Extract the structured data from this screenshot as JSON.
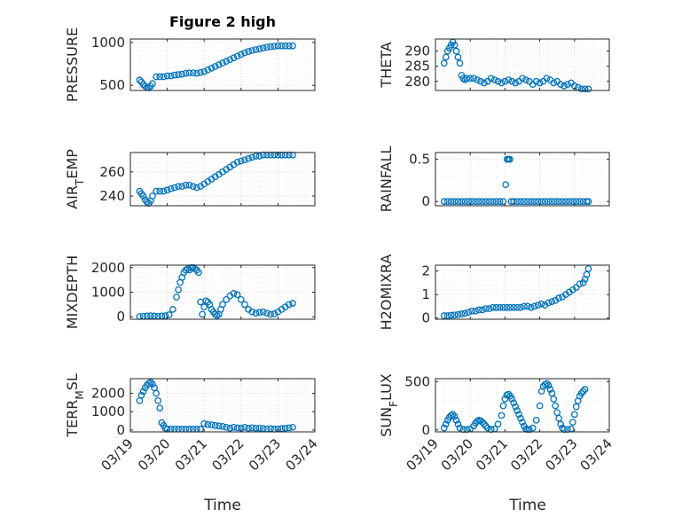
{
  "figure": {
    "title": "Figure 2 high",
    "xlabel": "Time",
    "x_ticklabels": [
      "03/19",
      "03/20",
      "03/21",
      "03/22",
      "03/23",
      "03/24"
    ]
  },
  "chart_data": [
    {
      "type": "scatter",
      "id": "pressure",
      "ylabel": "PRESSURE",
      "ylabel_sub": "",
      "xlim": [
        0,
        5
      ],
      "ylim": [
        440,
        1040
      ],
      "yticks": [
        500,
        1000
      ],
      "ytick_labels": [
        "500",
        "1000"
      ],
      "grid": true,
      "marker": "circle-open",
      "color": "#0072BD",
      "x": [
        0.25,
        0.3,
        0.35,
        0.4,
        0.45,
        0.5,
        0.55,
        0.6,
        0.7,
        0.8,
        0.9,
        1.0,
        1.1,
        1.2,
        1.3,
        1.4,
        1.5,
        1.6,
        1.7,
        1.8,
        1.9,
        2.0,
        2.1,
        2.2,
        2.3,
        2.4,
        2.5,
        2.6,
        2.7,
        2.8,
        2.9,
        3.0,
        3.1,
        3.2,
        3.3,
        3.4,
        3.5,
        3.6,
        3.7,
        3.8,
        3.9,
        4.0,
        4.1,
        4.2,
        4.3,
        4.4
      ],
      "y": [
        560,
        540,
        510,
        490,
        475,
        470,
        490,
        520,
        600,
        600,
        600,
        610,
        610,
        620,
        625,
        630,
        640,
        645,
        645,
        640,
        650,
        660,
        680,
        700,
        720,
        740,
        760,
        780,
        800,
        820,
        840,
        860,
        880,
        895,
        905,
        915,
        925,
        935,
        945,
        950,
        955,
        960,
        960,
        960,
        960,
        960
      ]
    },
    {
      "type": "scatter",
      "id": "theta",
      "ylabel": "THETA",
      "ylabel_sub": "",
      "xlim": [
        0,
        5
      ],
      "ylim": [
        277,
        294
      ],
      "yticks": [
        280,
        285,
        290
      ],
      "ytick_labels": [
        "280",
        "285",
        "290"
      ],
      "grid": true,
      "marker": "circle-open",
      "color": "#0072BD",
      "x": [
        0.25,
        0.3,
        0.35,
        0.4,
        0.45,
        0.5,
        0.55,
        0.6,
        0.65,
        0.7,
        0.75,
        0.8,
        0.85,
        0.9,
        1.0,
        1.1,
        1.2,
        1.3,
        1.4,
        1.5,
        1.6,
        1.7,
        1.8,
        1.9,
        2.0,
        2.1,
        2.2,
        2.3,
        2.4,
        2.5,
        2.6,
        2.7,
        2.8,
        2.9,
        3.0,
        3.1,
        3.2,
        3.3,
        3.4,
        3.5,
        3.6,
        3.7,
        3.8,
        3.9,
        4.0,
        4.1,
        4.2,
        4.3,
        4.4
      ],
      "y": [
        286,
        288,
        290,
        291,
        292,
        293,
        292,
        290,
        288,
        286,
        282,
        281,
        280.5,
        281,
        281,
        281,
        280.5,
        280,
        279.5,
        280,
        281,
        280.5,
        280,
        279.5,
        280,
        280.5,
        280,
        279.5,
        280,
        281,
        280.5,
        280,
        279,
        280,
        279.5,
        280,
        281,
        280.5,
        279.5,
        280,
        279,
        278.5,
        279,
        279.5,
        278.5,
        278,
        277.5,
        277.5,
        277.5
      ]
    },
    {
      "type": "scatter",
      "id": "air_temp",
      "ylabel": "AIR",
      "ylabel_sub": "T",
      "ylabel_rest": "EMP",
      "xlim": [
        0,
        5
      ],
      "ylim": [
        232,
        276
      ],
      "yticks": [
        240,
        260
      ],
      "ytick_labels": [
        "240",
        "260"
      ],
      "grid": true,
      "marker": "circle-open",
      "color": "#0072BD",
      "x": [
        0.25,
        0.3,
        0.35,
        0.4,
        0.45,
        0.5,
        0.55,
        0.6,
        0.7,
        0.8,
        0.9,
        1.0,
        1.1,
        1.2,
        1.3,
        1.4,
        1.5,
        1.6,
        1.7,
        1.8,
        1.9,
        2.0,
        2.1,
        2.2,
        2.3,
        2.4,
        2.5,
        2.6,
        2.7,
        2.8,
        2.9,
        3.0,
        3.1,
        3.2,
        3.3,
        3.4,
        3.5,
        3.6,
        3.7,
        3.8,
        3.9,
        4.0,
        4.1,
        4.2,
        4.3,
        4.4
      ],
      "y": [
        244,
        242,
        240,
        237,
        235,
        234,
        236,
        240,
        244,
        244,
        244,
        245,
        246,
        247,
        248,
        248,
        249,
        249,
        248,
        247,
        248,
        250,
        252,
        254,
        256,
        258,
        260,
        262,
        264,
        266,
        268,
        269,
        270,
        271,
        272,
        273,
        273,
        274,
        274,
        274,
        274,
        274,
        274,
        274,
        274,
        274
      ]
    },
    {
      "type": "scatter",
      "id": "rainfall",
      "ylabel": "RAINFALL",
      "ylabel_sub": "",
      "xlim": [
        0,
        5
      ],
      "ylim": [
        -0.05,
        0.58
      ],
      "yticks": [
        0,
        0.5
      ],
      "ytick_labels": [
        "0",
        "0.5"
      ],
      "grid": true,
      "marker": "circle-open",
      "color": "#0072BD",
      "x": [
        0.25,
        0.35,
        0.45,
        0.55,
        0.65,
        0.75,
        0.85,
        0.95,
        1.05,
        1.15,
        1.25,
        1.35,
        1.45,
        1.55,
        1.65,
        1.75,
        1.85,
        1.95,
        2.02,
        2.06,
        2.1,
        2.14,
        2.18,
        2.25,
        2.35,
        2.45,
        2.55,
        2.65,
        2.75,
        2.85,
        2.95,
        3.05,
        3.15,
        3.25,
        3.35,
        3.45,
        3.55,
        3.65,
        3.75,
        3.85,
        3.95,
        4.05,
        4.15,
        4.25,
        4.35,
        4.4
      ],
      "y": [
        0,
        0,
        0,
        0,
        0,
        0,
        0,
        0,
        0,
        0,
        0,
        0,
        0,
        0,
        0,
        0,
        0,
        0,
        0.2,
        0.5,
        0.5,
        0.5,
        0,
        0,
        0,
        0,
        0,
        0,
        0,
        0,
        0,
        0,
        0,
        0,
        0,
        0,
        0,
        0,
        0,
        0,
        0,
        0,
        0,
        0,
        0,
        0
      ]
    },
    {
      "type": "scatter",
      "id": "mixdepth",
      "ylabel": "MIXDEPTH",
      "ylabel_sub": "",
      "xlim": [
        0,
        5
      ],
      "ylim": [
        -100,
        2100
      ],
      "yticks": [
        0,
        1000,
        2000
      ],
      "ytick_labels": [
        "0",
        "1000",
        "2000"
      ],
      "grid": true,
      "marker": "circle-open",
      "color": "#0072BD",
      "x": [
        0.25,
        0.35,
        0.45,
        0.55,
        0.65,
        0.75,
        0.85,
        0.95,
        1.05,
        1.15,
        1.25,
        1.3,
        1.35,
        1.4,
        1.45,
        1.5,
        1.55,
        1.6,
        1.65,
        1.7,
        1.75,
        1.8,
        1.85,
        1.9,
        1.95,
        2.0,
        2.05,
        2.1,
        2.15,
        2.2,
        2.25,
        2.3,
        2.35,
        2.4,
        2.45,
        2.5,
        2.6,
        2.7,
        2.8,
        2.9,
        3.0,
        3.1,
        3.2,
        3.3,
        3.4,
        3.5,
        3.6,
        3.7,
        3.8,
        3.9,
        4.0,
        4.1,
        4.2,
        4.3,
        4.4
      ],
      "y": [
        10,
        20,
        30,
        40,
        30,
        20,
        30,
        40,
        80,
        300,
        800,
        1100,
        1400,
        1600,
        1800,
        1900,
        1950,
        1900,
        2000,
        2000,
        1950,
        1900,
        1800,
        600,
        100,
        400,
        650,
        600,
        500,
        300,
        200,
        100,
        50,
        100,
        300,
        500,
        700,
        850,
        950,
        900,
        700,
        500,
        300,
        200,
        150,
        180,
        200,
        150,
        100,
        120,
        200,
        300,
        400,
        500,
        550
      ]
    },
    {
      "type": "scatter",
      "id": "h2omixra",
      "ylabel": "H2OMIXRA",
      "ylabel_sub": "",
      "xlim": [
        0,
        5
      ],
      "ylim": [
        -0.05,
        2.25
      ],
      "yticks": [
        0,
        1,
        2
      ],
      "ytick_labels": [
        "0",
        "1",
        "2"
      ],
      "grid": true,
      "marker": "circle-open",
      "color": "#0072BD",
      "x": [
        0.25,
        0.35,
        0.45,
        0.55,
        0.65,
        0.75,
        0.85,
        0.95,
        1.05,
        1.15,
        1.25,
        1.35,
        1.45,
        1.55,
        1.65,
        1.75,
        1.85,
        1.95,
        2.05,
        2.15,
        2.25,
        2.35,
        2.45,
        2.55,
        2.65,
        2.75,
        2.85,
        2.95,
        3.05,
        3.15,
        3.25,
        3.35,
        3.45,
        3.55,
        3.65,
        3.75,
        3.85,
        3.95,
        4.05,
        4.15,
        4.25,
        4.3,
        4.35,
        4.4
      ],
      "y": [
        0.1,
        0.1,
        0.12,
        0.13,
        0.15,
        0.18,
        0.2,
        0.25,
        0.3,
        0.3,
        0.35,
        0.35,
        0.4,
        0.4,
        0.45,
        0.45,
        0.45,
        0.45,
        0.45,
        0.45,
        0.45,
        0.45,
        0.45,
        0.5,
        0.5,
        0.45,
        0.5,
        0.55,
        0.6,
        0.55,
        0.65,
        0.7,
        0.75,
        0.85,
        0.9,
        1.0,
        1.1,
        1.2,
        1.3,
        1.45,
        1.5,
        1.65,
        1.85,
        2.1
      ]
    },
    {
      "type": "scatter",
      "id": "terr_msl",
      "ylabel": "TERR",
      "ylabel_sub": "M",
      "ylabel_rest": "SL",
      "xlim": [
        0,
        5
      ],
      "ylim": [
        -100,
        2800
      ],
      "yticks": [
        0,
        1000,
        2000
      ],
      "ytick_labels": [
        "0",
        "1000",
        "2000"
      ],
      "grid": true,
      "marker": "circle-open",
      "color": "#0072BD",
      "x": [
        0.25,
        0.3,
        0.35,
        0.4,
        0.45,
        0.5,
        0.55,
        0.6,
        0.65,
        0.7,
        0.75,
        0.8,
        0.85,
        0.9,
        0.95,
        1.0,
        1.1,
        1.2,
        1.3,
        1.4,
        1.5,
        1.6,
        1.7,
        1.8,
        1.9,
        2.0,
        2.1,
        2.2,
        2.3,
        2.4,
        2.5,
        2.6,
        2.7,
        2.8,
        2.9,
        3.0,
        3.1,
        3.2,
        3.3,
        3.4,
        3.5,
        3.6,
        3.7,
        3.8,
        3.9,
        4.0,
        4.1,
        4.2,
        4.3,
        4.4
      ],
      "y": [
        1600,
        1900,
        2100,
        2300,
        2450,
        2550,
        2600,
        2500,
        2300,
        2000,
        1600,
        1200,
        400,
        250,
        100,
        50,
        50,
        50,
        50,
        50,
        50,
        50,
        50,
        50,
        50,
        350,
        300,
        280,
        250,
        220,
        200,
        150,
        100,
        150,
        120,
        100,
        150,
        100,
        120,
        100,
        100,
        80,
        60,
        80,
        50,
        60,
        80,
        100,
        120,
        150
      ]
    },
    {
      "type": "scatter",
      "id": "sun_flux",
      "ylabel": "SUN",
      "ylabel_sub": "F",
      "ylabel_rest": "LUX",
      "xlim": [
        0,
        5
      ],
      "ylim": [
        -20,
        530
      ],
      "yticks": [
        0,
        500
      ],
      "ytick_labels": [
        "0",
        "500"
      ],
      "grid": true,
      "marker": "circle-open",
      "color": "#0072BD",
      "x": [
        0.25,
        0.3,
        0.35,
        0.4,
        0.45,
        0.5,
        0.55,
        0.6,
        0.65,
        0.7,
        0.8,
        0.9,
        1.0,
        1.1,
        1.15,
        1.2,
        1.25,
        1.3,
        1.35,
        1.4,
        1.45,
        1.5,
        1.6,
        1.7,
        1.8,
        1.9,
        1.95,
        2.0,
        2.05,
        2.1,
        2.15,
        2.2,
        2.25,
        2.3,
        2.35,
        2.4,
        2.45,
        2.5,
        2.55,
        2.6,
        2.65,
        2.7,
        2.8,
        2.9,
        3.0,
        3.05,
        3.1,
        3.15,
        3.2,
        3.25,
        3.3,
        3.35,
        3.4,
        3.45,
        3.5,
        3.55,
        3.6,
        3.65,
        3.7,
        3.8,
        3.9,
        3.95,
        4.0,
        4.05,
        4.1,
        4.15,
        4.2,
        4.25,
        4.3
      ],
      "y": [
        20,
        60,
        100,
        130,
        150,
        160,
        140,
        100,
        60,
        20,
        5,
        5,
        10,
        40,
        70,
        90,
        100,
        95,
        80,
        60,
        40,
        20,
        5,
        10,
        60,
        150,
        250,
        320,
        360,
        370,
        350,
        320,
        280,
        240,
        200,
        160,
        120,
        80,
        40,
        10,
        5,
        5,
        20,
        100,
        250,
        400,
        450,
        470,
        480,
        460,
        420,
        380,
        320,
        250,
        180,
        120,
        60,
        20,
        5,
        5,
        10,
        80,
        160,
        240,
        300,
        350,
        380,
        400,
        420
      ]
    }
  ]
}
